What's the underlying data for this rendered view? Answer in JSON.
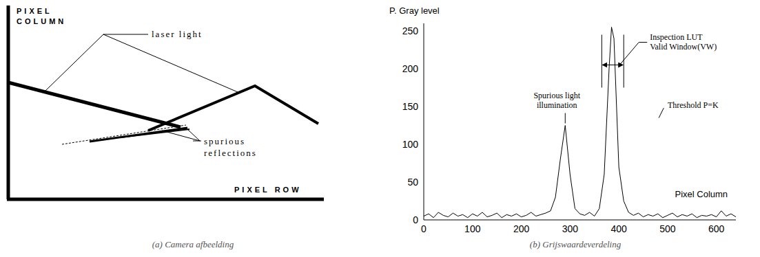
{
  "diagram": {
    "caption": "(a) Camera afbeelding",
    "y_axis_label": [
      "PIXEL",
      "COLUMN"
    ],
    "x_axis_label": "PIXEL ROW",
    "labels": {
      "laser": "laser light",
      "spurious": [
        "spurious",
        "reflections"
      ]
    }
  },
  "chart_data": {
    "type": "line",
    "caption": "(b) Grijswaardeverdeling",
    "y_label": "P. Gray level",
    "x_label": "Pixel Column",
    "color": "#000000",
    "x": [
      0,
      10,
      20,
      30,
      40,
      50,
      60,
      70,
      80,
      90,
      100,
      110,
      120,
      130,
      140,
      150,
      160,
      170,
      180,
      190,
      200,
      210,
      220,
      230,
      240,
      250,
      260,
      270,
      280,
      290,
      300,
      310,
      320,
      330,
      340,
      350,
      360,
      370,
      380,
      385,
      390,
      400,
      410,
      420,
      430,
      440,
      450,
      460,
      470,
      480,
      490,
      500,
      510,
      520,
      530,
      540,
      550,
      560,
      570,
      580,
      590,
      600,
      610,
      620,
      630,
      640
    ],
    "values": [
      5,
      8,
      3,
      10,
      6,
      4,
      9,
      5,
      7,
      3,
      8,
      5,
      10,
      4,
      6,
      9,
      3,
      7,
      5,
      8,
      4,
      6,
      10,
      5,
      7,
      9,
      12,
      30,
      80,
      125,
      60,
      15,
      8,
      6,
      10,
      5,
      15,
      60,
      200,
      255,
      240,
      70,
      25,
      10,
      6,
      9,
      4,
      7,
      5,
      8,
      3,
      6,
      9,
      4,
      7,
      5,
      8,
      3,
      6,
      5,
      7,
      4,
      12,
      5,
      8,
      4
    ],
    "xlim": [
      0,
      640
    ],
    "ylim": [
      0,
      260
    ],
    "xticks": [
      0,
      100,
      200,
      300,
      400,
      500,
      600
    ],
    "yticks": [
      0,
      50,
      100,
      150,
      200,
      250
    ],
    "valid_window": [
      365,
      410
    ],
    "annotations": {
      "spurious": "Spurious light illumination",
      "spurious_x": 290,
      "window": "Inspection LUT Valid Window(VW)",
      "threshold": "Threshold P=K"
    }
  }
}
